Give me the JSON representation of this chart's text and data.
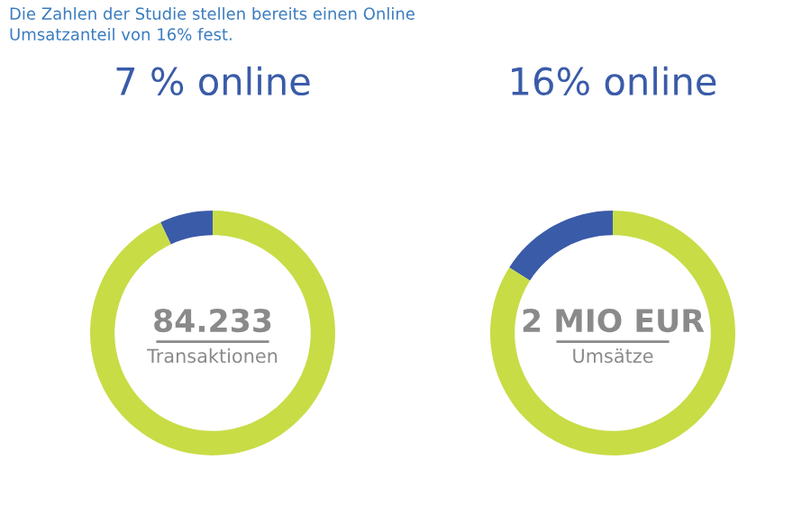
{
  "chart_data": [
    {
      "type": "donut",
      "subtitle": "Die Zahlen der Studie stellen bereits einen Online\nUmsatzanteil von 16% fest.",
      "title": "7 % online",
      "categories": [
        null,
        null
      ],
      "values": [
        7,
        93
      ],
      "colors": [
        "#3a5ba8",
        "#c8dc46"
      ],
      "annotations": [
        "84.233",
        "Transaktionen"
      ]
    },
    {
      "type": "donut",
      "title": "16% online",
      "categories": [
        null,
        null
      ],
      "values": [
        16,
        84
      ],
      "colors": [
        "#3a5ba8",
        "#c8dc46"
      ],
      "annotations": [
        "2 MIO EUR",
        "Umsätze"
      ]
    }
  ]
}
